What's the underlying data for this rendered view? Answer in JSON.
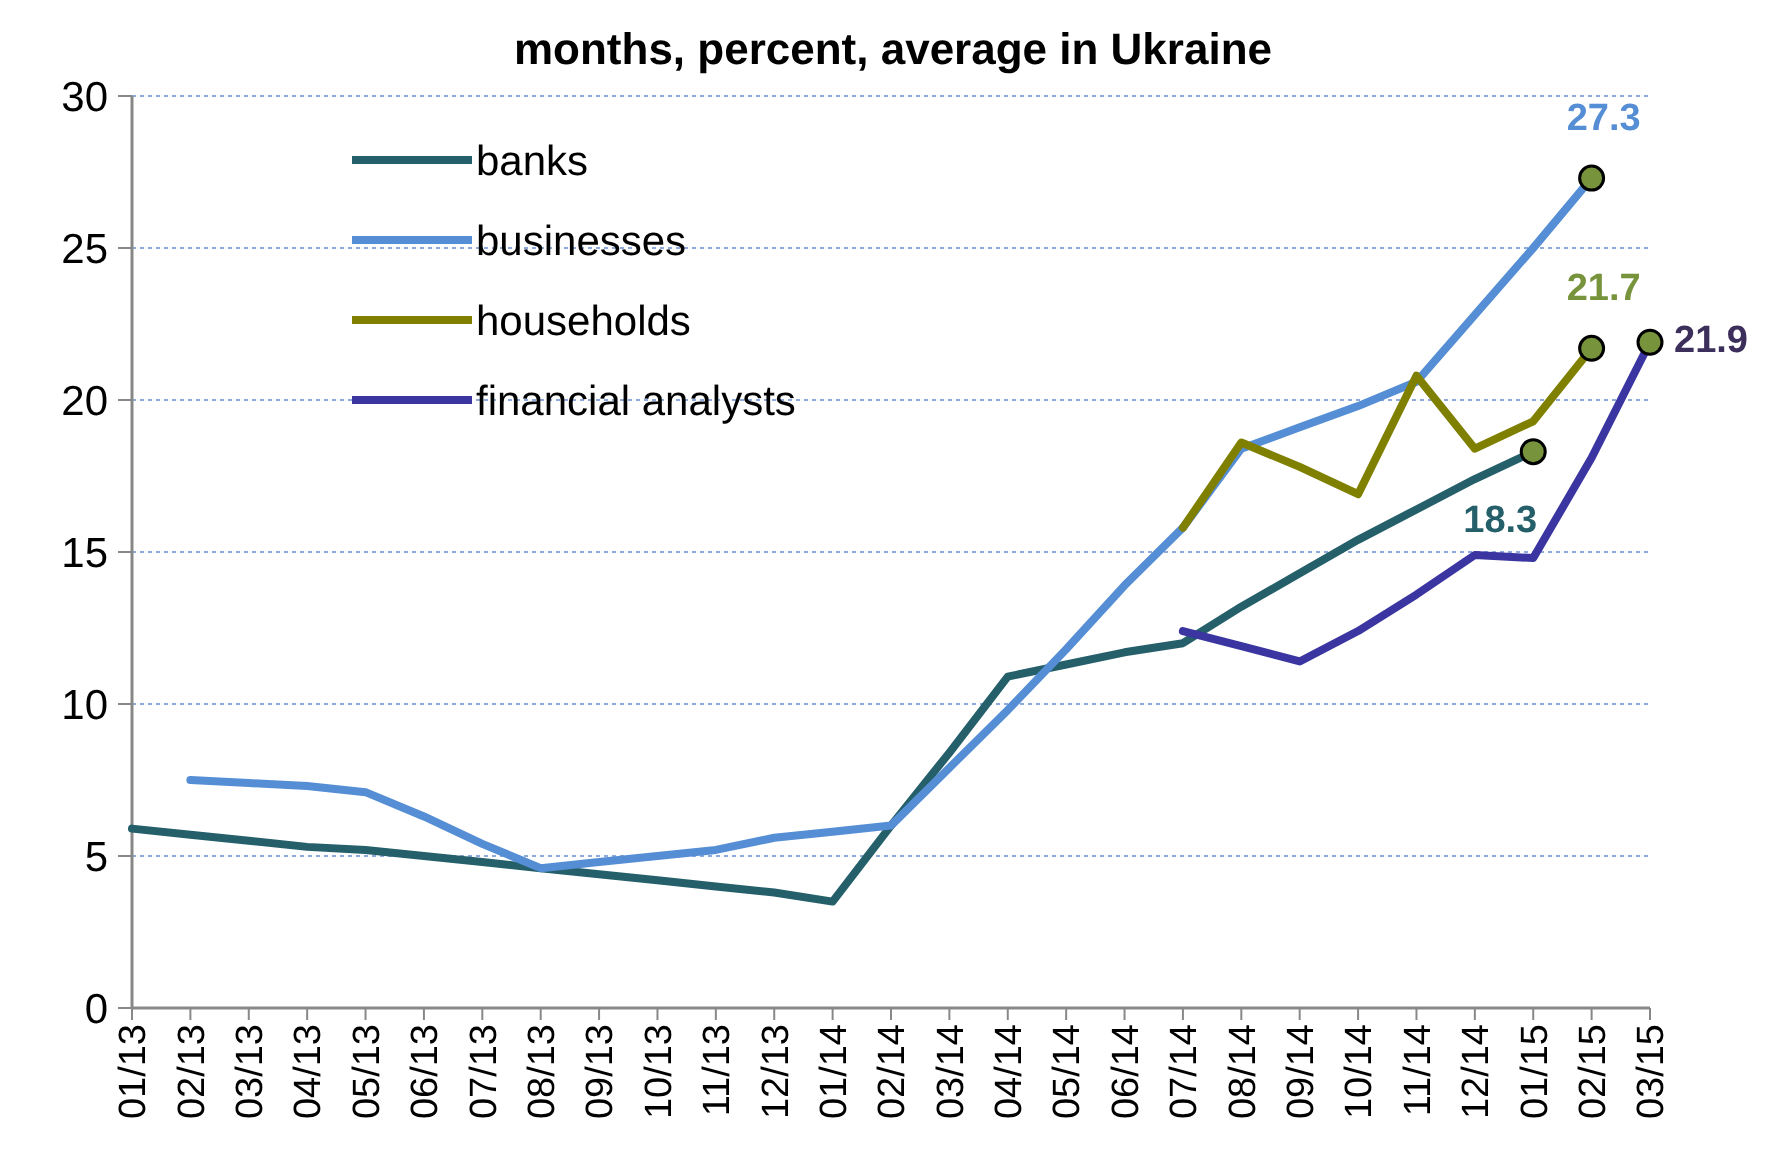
{
  "chart_data": {
    "type": "line",
    "title": "months, percent, average in Ukraine",
    "categories": [
      "01/13",
      "02/13",
      "03/13",
      "04/13",
      "05/13",
      "06/13",
      "07/13",
      "08/13",
      "09/13",
      "10/13",
      "11/13",
      "12/13",
      "01/14",
      "02/14",
      "03/14",
      "04/14",
      "05/14",
      "06/14",
      "07/14",
      "08/14",
      "09/14",
      "10/14",
      "11/14",
      "12/14",
      "01/15",
      "02/15",
      "03/15"
    ],
    "series": [
      {
        "name": "banks",
        "color": "#245f6a",
        "values": [
          5.9,
          5.7,
          5.5,
          5.3,
          5.2,
          5.0,
          4.8,
          4.6,
          4.4,
          4.2,
          4.0,
          3.8,
          3.5,
          6.0,
          8.4,
          10.9,
          11.3,
          11.7,
          12.0,
          13.2,
          14.3,
          15.4,
          16.4,
          17.4,
          18.3,
          null,
          null
        ],
        "value_labels": [
          null,
          null,
          null,
          null,
          null,
          null,
          null,
          null,
          null,
          null,
          null,
          null,
          null,
          null,
          null,
          null,
          null,
          null,
          null,
          null,
          null,
          null,
          null,
          null,
          "18.3",
          null,
          null
        ]
      },
      {
        "name": "businesses",
        "color": "#558ed5",
        "values": [
          null,
          7.5,
          7.4,
          7.3,
          7.1,
          6.3,
          5.4,
          4.6,
          4.8,
          5.0,
          5.2,
          5.6,
          5.8,
          6.0,
          7.9,
          9.8,
          11.8,
          13.9,
          15.8,
          18.4,
          19.1,
          19.8,
          20.6,
          22.8,
          25.0,
          27.3,
          null
        ],
        "value_labels": [
          null,
          null,
          null,
          null,
          null,
          null,
          null,
          null,
          null,
          null,
          null,
          null,
          null,
          null,
          null,
          null,
          null,
          null,
          null,
          null,
          null,
          null,
          null,
          null,
          null,
          "27.3",
          null
        ]
      },
      {
        "name": "households",
        "color": "#7f8000",
        "values": [
          null,
          null,
          null,
          null,
          null,
          null,
          null,
          null,
          null,
          null,
          null,
          null,
          null,
          null,
          null,
          null,
          null,
          null,
          15.8,
          18.6,
          17.8,
          16.9,
          20.8,
          18.4,
          19.3,
          21.7,
          null
        ],
        "value_labels": [
          null,
          null,
          null,
          null,
          null,
          null,
          null,
          null,
          null,
          null,
          null,
          null,
          null,
          null,
          null,
          null,
          null,
          null,
          null,
          null,
          null,
          null,
          null,
          null,
          null,
          "21.7",
          null
        ]
      },
      {
        "name": "financial analysts",
        "color": "#3a35a0",
        "values": [
          null,
          null,
          null,
          null,
          null,
          null,
          null,
          null,
          null,
          null,
          null,
          null,
          null,
          null,
          null,
          null,
          null,
          null,
          12.4,
          11.9,
          11.4,
          12.4,
          13.6,
          14.9,
          14.8,
          18.1,
          21.9
        ],
        "value_labels": [
          null,
          null,
          null,
          null,
          null,
          null,
          null,
          null,
          null,
          null,
          null,
          null,
          null,
          null,
          null,
          null,
          null,
          null,
          null,
          null,
          null,
          null,
          null,
          null,
          null,
          null,
          "21.9"
        ]
      }
    ],
    "ylim": [
      0,
      30
    ],
    "yticks": [
      0,
      5,
      10,
      15,
      20,
      25,
      30
    ],
    "grid": "y",
    "legend": "top left"
  }
}
